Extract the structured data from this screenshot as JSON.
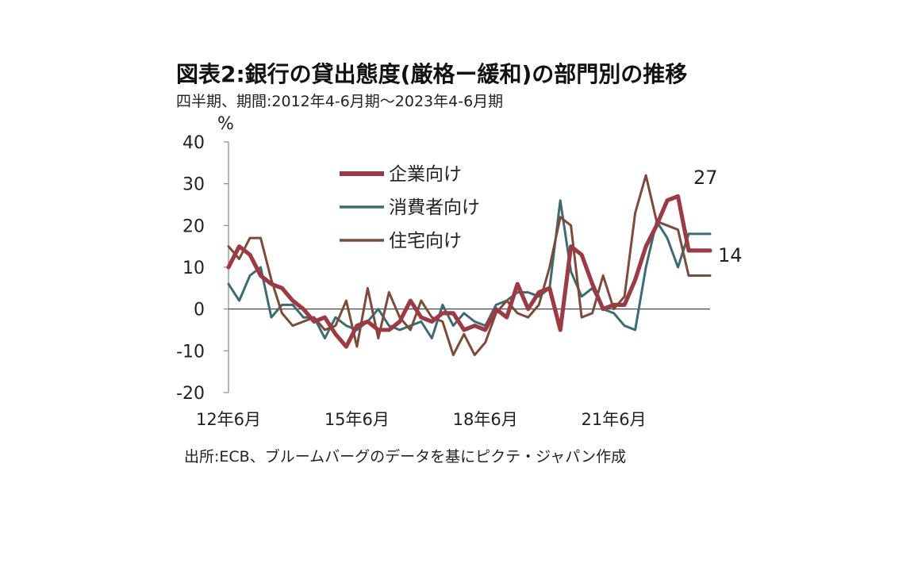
{
  "chart_data": {
    "type": "line",
    "title": "図表2:銀行の貸出態度(厳格ー緩和)の部門別の推移",
    "subtitle": "四半期、期間:2012年4-6月期〜2023年4-6月期",
    "source": "出所:ECB、ブルームバーグのデータを基にピクテ・ジャパン作成",
    "ylabel": "%",
    "ylim": [
      -20,
      40
    ],
    "yticks": [
      40,
      30,
      20,
      10,
      0,
      -10,
      -20
    ],
    "xlim": [
      0,
      45
    ],
    "xticks": [
      {
        "label": "12年6月",
        "index": 0
      },
      {
        "label": "15年6月",
        "index": 12
      },
      {
        "label": "18年6月",
        "index": 24
      },
      {
        "label": "21年6月",
        "index": 36
      }
    ],
    "series": [
      {
        "name": "企業向け",
        "color": "#9b3b46",
        "values": [
          10,
          15,
          13,
          8,
          6,
          5,
          2,
          0,
          -3,
          -2,
          -6,
          -9,
          -4,
          -3,
          -5,
          -5,
          -3,
          2,
          -2,
          -3,
          -1,
          -1,
          -5,
          -4,
          -5,
          0,
          -2,
          6,
          0,
          4,
          5,
          -5,
          15,
          13,
          6,
          0,
          1,
          1,
          7,
          15,
          20,
          26,
          27,
          14,
          14,
          14
        ]
      },
      {
        "name": "消費者向け",
        "color": "#3e6b73",
        "values": [
          6,
          2,
          8,
          10,
          -2,
          1,
          1,
          -2,
          -2,
          -7,
          -2,
          -4,
          -5,
          -3,
          0,
          -4,
          -5,
          -4,
          -3,
          -7,
          1,
          -4,
          -1,
          -3,
          -4,
          1,
          2,
          4,
          4,
          3,
          5,
          26,
          9,
          3,
          5,
          0,
          -1,
          -4,
          -5,
          10,
          21,
          17,
          10,
          18,
          18,
          18
        ]
      },
      {
        "name": "住宅向け",
        "color": "#7b4b3b",
        "values": [
          15,
          12,
          17,
          17,
          7,
          -1,
          -4,
          -3,
          -2,
          -5,
          -4,
          2,
          -9,
          5,
          -7,
          4,
          -2,
          -5,
          2,
          -2,
          -3,
          -11,
          -6,
          -11,
          -8,
          -1,
          2,
          -1,
          -2,
          1,
          10,
          22,
          20,
          -2,
          -1,
          8,
          0,
          3,
          23,
          32,
          21,
          20,
          19,
          8,
          8,
          8
        ]
      }
    ],
    "annotations": [
      {
        "text": "27",
        "series": "企業向け",
        "x_index": 42,
        "y": 27
      },
      {
        "text": "14",
        "series": "企業向け",
        "x_index": 44,
        "y": 14
      }
    ],
    "legend": "top-center"
  }
}
